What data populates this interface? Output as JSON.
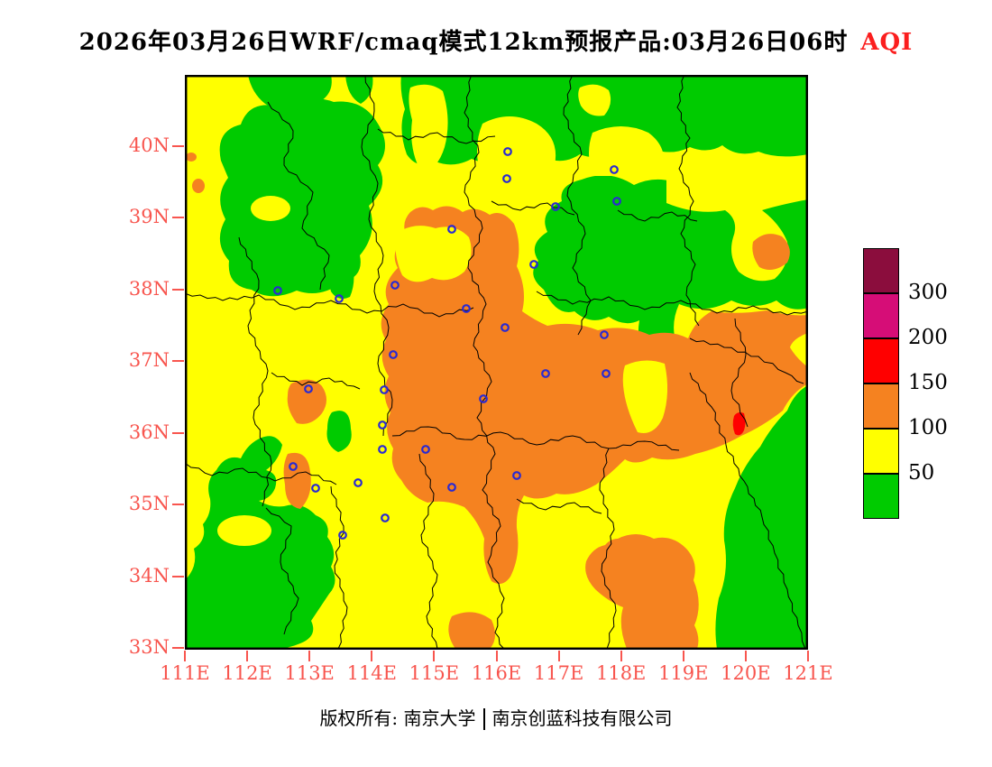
{
  "title": {
    "text": "2026年03月26日WRF/cmaq模式12km预报产品:03月26日06时",
    "suffix": "AQI"
  },
  "footer": {
    "left": "版权所有: 南京大学",
    "right": "南京创蓝科技有限公司"
  },
  "map": {
    "lat_ticks": [
      "40N",
      "39N",
      "38N",
      "37N",
      "36N",
      "35N",
      "34N",
      "33N"
    ],
    "lon_ticks": [
      "111E",
      "112E",
      "113E",
      "114E",
      "115E",
      "116E",
      "117E",
      "118E",
      "119E",
      "120E",
      "121E"
    ],
    "city_markers": [
      [
        103,
        239
      ],
      [
        171,
        248
      ],
      [
        296,
        171
      ],
      [
        233,
        233
      ],
      [
        312,
        259
      ],
      [
        231,
        310
      ],
      [
        357,
        115
      ],
      [
        358,
        85
      ],
      [
        411,
        146
      ],
      [
        476,
        105
      ],
      [
        479,
        140
      ],
      [
        387,
        210
      ],
      [
        355,
        280
      ],
      [
        465,
        288
      ],
      [
        137,
        348
      ],
      [
        221,
        349
      ],
      [
        331,
        359
      ],
      [
        219,
        388
      ],
      [
        219,
        415
      ],
      [
        267,
        415
      ],
      [
        120,
        434
      ],
      [
        145,
        458
      ],
      [
        192,
        452
      ],
      [
        296,
        457
      ],
      [
        222,
        491
      ],
      [
        175,
        510
      ],
      [
        400,
        331
      ],
      [
        467,
        331
      ],
      [
        368,
        444
      ]
    ]
  },
  "colorbar": {
    "colors": [
      "#8b0d3d",
      "#d60d77",
      "#ff0000",
      "#f58220",
      "#ffff00",
      "#00cb00"
    ],
    "labels": [
      "300",
      "200",
      "150",
      "100",
      "50"
    ]
  },
  "palette": {
    "green": "#00cb00",
    "yellow": "#ffff00",
    "orange": "#f58220",
    "red": "#ff0000",
    "axis_red": "#f8554e",
    "title_red": "#fb1e1e",
    "marker_blue": "#2a2ad2",
    "boundary_black": "#000000"
  }
}
